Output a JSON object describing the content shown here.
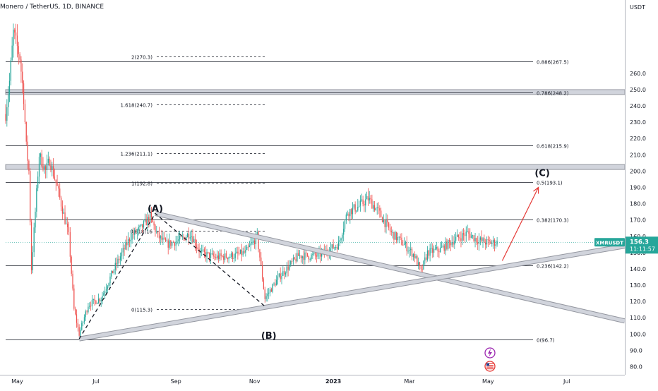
{
  "chart_header": {
    "title": "Monero / TetherUS, 1D, BINANCE",
    "quote_unit": "USDT"
  },
  "symbol_tag": {
    "symbol": "XMRUSDT",
    "price": "156.3",
    "countdown": "11:11:57"
  },
  "colors": {
    "up": "#26a69a",
    "down": "#ef5350",
    "label_bg": "#26a69a",
    "arrow": "#e53935",
    "level_line": "#131722",
    "zone_fill": "#d1d4dc",
    "zone_stroke": "#9598a1"
  },
  "icons": [
    "lightning-icon",
    "us-flag-icon"
  ],
  "chart_data": {
    "type": "candlestick",
    "title": "Monero / TetherUS, 1D, BINANCE",
    "y_unit": "USDT",
    "ylim": [
      75,
      305
    ],
    "y_ticks": [
      80,
      90,
      100,
      110,
      120,
      130,
      140,
      150,
      160,
      170,
      180,
      190,
      200,
      210,
      220,
      230,
      240,
      250,
      260
    ],
    "x_tick_labels": [
      "May",
      "Jul",
      "Sep",
      "Nov",
      "2023",
      "Mar",
      "May",
      "Jul"
    ],
    "x_tick_dates": [
      "2022-05-01",
      "2022-07-01",
      "2022-09-01",
      "2022-11-01",
      "2023-01-01",
      "2023-03-01",
      "2023-05-01",
      "2023-07-01"
    ],
    "x_range": [
      "2022-04-22",
      "2023-08-15"
    ],
    "last_price": 156.3,
    "price_path": [
      [
        "2022-04-22",
        235
      ],
      [
        "2022-04-25",
        255
      ],
      [
        "2022-04-28",
        285
      ],
      [
        "2022-05-03",
        270
      ],
      [
        "2022-05-06",
        245
      ],
      [
        "2022-05-08",
        215
      ],
      [
        "2022-05-10",
        200
      ],
      [
        "2022-05-12",
        140
      ],
      [
        "2022-05-18",
        210
      ],
      [
        "2022-05-23",
        200
      ],
      [
        "2022-05-26",
        207
      ],
      [
        "2022-06-01",
        190
      ],
      [
        "2022-06-10",
        160
      ],
      [
        "2022-06-14",
        115
      ],
      [
        "2022-06-18",
        100
      ],
      [
        "2022-06-25",
        118
      ],
      [
        "2022-07-05",
        122
      ],
      [
        "2022-07-15",
        140
      ],
      [
        "2022-07-28",
        160
      ],
      [
        "2022-08-05",
        165
      ],
      [
        "2022-08-12",
        172
      ],
      [
        "2022-08-18",
        160
      ],
      [
        "2022-08-25",
        155
      ],
      [
        "2022-09-05",
        158
      ],
      [
        "2022-09-12",
        162
      ],
      [
        "2022-09-20",
        150
      ],
      [
        "2022-10-01",
        147
      ],
      [
        "2022-10-15",
        148
      ],
      [
        "2022-10-25",
        150
      ],
      [
        "2022-11-03",
        160
      ],
      [
        "2022-11-09",
        122
      ],
      [
        "2022-11-20",
        135
      ],
      [
        "2022-12-05",
        148
      ],
      [
        "2022-12-20",
        148
      ],
      [
        "2023-01-05",
        155
      ],
      [
        "2023-01-12",
        175
      ],
      [
        "2023-01-20",
        178
      ],
      [
        "2023-01-28",
        183
      ],
      [
        "2023-02-05",
        175
      ],
      [
        "2023-02-15",
        162
      ],
      [
        "2023-02-25",
        155
      ],
      [
        "2023-03-05",
        148
      ],
      [
        "2023-03-10",
        138
      ],
      [
        "2023-03-15",
        150
      ],
      [
        "2023-03-25",
        152
      ],
      [
        "2023-04-05",
        158
      ],
      [
        "2023-04-15",
        162
      ],
      [
        "2023-04-22",
        158
      ],
      [
        "2023-05-01",
        156
      ],
      [
        "2023-05-08",
        156.3
      ]
    ],
    "fib_levels_right": [
      {
        "label": "0.886(267.5)",
        "value": 267.5
      },
      {
        "label": "0.786(248.2)",
        "value": 248.2
      },
      {
        "label": "0.618(215.9)",
        "value": 215.9
      },
      {
        "label": "0.5(193.1)",
        "value": 193.1
      },
      {
        "label": "0.382(170.3)",
        "value": 170.3
      },
      {
        "label": "0.236(142.2)",
        "value": 142.2
      },
      {
        "label": "0(96.7)",
        "value": 96.7
      }
    ],
    "fib_levels_left": [
      {
        "label": "2(270.3)",
        "value": 270.3
      },
      {
        "label": "1.618(240.7)",
        "value": 240.7
      },
      {
        "label": "1.236(211.1)",
        "value": 211.1
      },
      {
        "label": "1(192.8)",
        "value": 192.8
      },
      {
        "label": "0.618(16",
        "value": 163.3
      },
      {
        "label": "0(115.3)",
        "value": 115.3
      }
    ],
    "zones": [
      {
        "from": 247,
        "to": 250
      },
      {
        "from": 201,
        "to": 204
      }
    ],
    "wave_labels": [
      {
        "label": "(A)",
        "date": "2022-08-16",
        "price": 175
      },
      {
        "label": "(B)",
        "date": "2022-11-12",
        "price": 97
      },
      {
        "label": "(C)",
        "date": "2023-06-12",
        "price": 197
      }
    ],
    "wave_path": [
      [
        "2022-06-18",
        97
      ],
      [
        "2022-08-16",
        174
      ],
      [
        "2022-11-09",
        117
      ]
    ],
    "trend_lines": [
      {
        "from": [
          "2022-08-16",
          174
        ],
        "to": [
          "2023-08-15",
          108
        ]
      },
      {
        "from": [
          "2022-06-18",
          97
        ],
        "to": [
          "2023-08-15",
          154
        ]
      }
    ],
    "projection_arrow": {
      "from": [
        "2023-05-12",
        145
      ],
      "to": [
        "2023-06-09",
        190
      ]
    }
  }
}
